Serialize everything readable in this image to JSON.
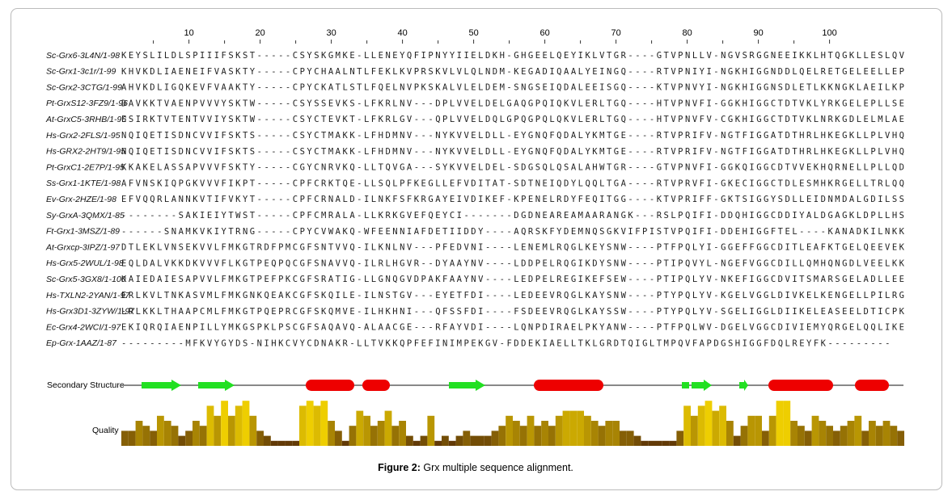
{
  "ruler": [
    10,
    20,
    30,
    40,
    50,
    60,
    70,
    80,
    90,
    100
  ],
  "alignment": [
    {
      "name": "Sc-Grx6-3L4N/1-98",
      "sequence": "KEYSLILDLSPIIIFSKST-----CSYSKGMKE-LLENEYQFIPNYYIIELDKH-GHGEELQEYIKLVTGR----GTVPNLLV-NGVSRGGNEEIKKLHTQGKLLESLQV"
    },
    {
      "name": "Sc-Grx1-3c1r/1-99",
      "sequence": "KHVKDLIAENEIFVASKTY-----CPYCHAALNTLFEKLKVPRSKVLVLQLNDM-KEGADIQAALYEINGQ----RTVPNIYI-NGKHIGGNDDLQELRETGELEELLEP"
    },
    {
      "name": "Sc-Grx2-3CTG/1-99",
      "sequence": "AHVKDLIGQKEVFVAAKTY-----CPYCKATLSTLFQELNVPKSKALVLELDEM-SNGSEIQDALEEISGQ----KTVPNVYI-NGKHIGGNSDLETLKKNGKLAEILKP"
    },
    {
      "name": "Pt-GrxS12-3FZ9/1-96",
      "sequence": "DAVKKTVAENPVVVYSKTW-----CSYSSEVKS-LFKRLNV---DPLVVELDELGAQGPQIQKVLERLTGQ----HTVPNVFI-GGKHIGGCTDTVKLYRKGELEPLLSE"
    },
    {
      "name": "At-GrxC5-3RHB/1-96",
      "sequence": "ESIRKTVTENTVVIYSKTW-----CSYCTEVKT-LFKRLGV---QPLVVELDQLGPQGPQLQKVLERLTGQ----HTVPNVFV-CGKHIGGCTDTVKLNRKGDLELMLAE"
    },
    {
      "name": "Hs-Grx2-2FLS/1-95",
      "sequence": "NQIQETISDNCVVIFSKTS-----CSYCTMAKK-LFHDMNV---NYKVVELDLL-EYGNQFQDALYKMTGE----RTVPRIFV-NGTFIGGATDTHRLHKEGKLLPLVHQ"
    },
    {
      "name": "Hs-GRX2-2HT9/1-95",
      "sequence": "NQIQETISDNCVVIFSKTS-----CSYCTMAKK-LFHDMNV---NYKVVELDLL-EYGNQFQDALYKMTGE----RTVPRIFV-NGTFIGGATDTHRLHKEGKLLPLVHQ"
    },
    {
      "name": "Pt-GrxC1-2E7P/1-95",
      "sequence": "KKAKELASSAPVVVFSKTY-----CGYCNRVKQ-LLTQVGA---SYKVVELDEL-SDGSQLQSALAHWTGR----GTVPNVFI-GGKQIGGCDTVVEKHQRNELLPLLQD"
    },
    {
      "name": "Ss-Grx1-1KTE/1-98",
      "sequence": "AFVNSKIQPGKVVVFIKPT-----CPFCRKTQE-LLSQLPFKEGLLEFVDITAT-SDTNEIQDYLQQLTGA----RTVPRVFI-GKECIGGCTDLESMHKRGELLTRLQQ"
    },
    {
      "name": "Ev-Grx-2HZE/1-98",
      "sequence": "EFVQQRLANNKVTIFVKYT-----CPFCRNALD-ILNKFSFKRGAYEIVDIKEF-KPENELRDYFEQITGG----KTVPRIFF-GKTSIGGYSDLLEIDNMDALGDILSS"
    },
    {
      "name": "Sy-GrxA-3QMX/1-85",
      "sequence": "--------SAKIEIYTWST-----CPFCMRALA-LLKRKGVEFQEYCI-------DGDNEAREAMAARANGK---RSLPQIFI-DDQHIGGCDDIYALDGAGKLDPLLHS"
    },
    {
      "name": "Ft-Grx1-3MSZ/1-89",
      "sequence": "------SNAMKVKIYTRNG-----CPYCVWAKQ-WFEENNIAFDETIIDDY----AQRSKFYDEMNQSGKVIFPISTVPQIFI-DDEHIGGFTEL----KANADKILNKK"
    },
    {
      "name": "At-Grxcp-3IPZ/1-97",
      "sequence": "DTLEKLVNSEKVVLFMKGTRDFPMCGFSNTVVQ-ILKNLNV---PFEDVNI----LENEMLRQGLKEYSNW----PTFPQLYI-GGEFFGGCDITLEAFKTGELQEEVEK"
    },
    {
      "name": "Hs-Grx5-2WUL/1-98",
      "sequence": "EQLDALVKKDKVVVFLKGTPEQPQCGFSNAVVQ-ILRLHGVR--DYAAYNV----LDDPELRQGIKDYSNW----PTIPQVYL-NGEFVGGCDILLQMHQNGDLVEELKK"
    },
    {
      "name": "Sc-Grx5-3GX8/1-100",
      "sequence": "KAIEDAIESAPVVLFMKGTPEFPKCGFSRATIG-LLGNQGVDPAKFAAYNV----LEDPELREGIKEFSEW----PTIPQLYV-NKEFIGGCDVITSMARSGELADLLEE"
    },
    {
      "name": "Hs-TXLN2-2YAN/1-97",
      "sequence": "ERLKVLTNKASVMLFMKGNKQEAKCGFSKQILE-ILNSTGV---EYETFDI----LEDEEVRQGLKAYSNW----PTYPQLYV-KGELVGGLDIVKELKENGELLPILRG"
    },
    {
      "name": "Hs-Grx3D1-3ZYW/1-97",
      "sequence": "LRLKKLTHAAPCMLFMKGTPQEPRCGFSKQMVE-ILHKHNI---QFSSFDI----FSDEEVRQGLKAYSSW----PTYPQLYV-SGELIGGLDIIKELEASEELDTICPK"
    },
    {
      "name": "Ec-Grx4-2WCI/1-97",
      "sequence": "EKIQRQIAENPILLYMKGSPKLPSCGFSAQAVQ-ALAACGE---RFAYVDI----LQNPDIRAELPKYANW----PTFPQLWV-DGELVGGCDIVIEMYQRGELQQLIKE"
    },
    {
      "name": "Ep-Grx-1AAZ/1-87",
      "sequence": "---------MFKVYGYDS-NIHKCVYCDNAKR-LLTVKKQPFEFINIMPEKGV-FDDEKIAELLTKLGRDTQIGLTMPQVFAPDGSHIGGFDQLREYFK---------"
    }
  ],
  "structure_label": "Secondary Structure",
  "quality_label": "Quality",
  "quality": [
    3,
    3,
    5,
    4,
    3,
    6,
    5,
    4,
    2,
    3,
    5,
    4,
    8,
    6,
    9,
    6,
    8,
    9,
    6,
    3,
    2,
    1,
    1,
    1,
    1,
    8,
    9,
    8,
    9,
    5,
    3,
    1,
    4,
    7,
    6,
    4,
    5,
    7,
    4,
    5,
    2,
    1,
    2,
    6,
    1,
    2,
    1,
    2,
    3,
    2,
    2,
    2,
    3,
    4,
    6,
    5,
    4,
    6,
    4,
    5,
    4,
    6,
    7,
    7,
    7,
    6,
    5,
    4,
    5,
    5,
    3,
    3,
    2,
    1,
    1,
    1,
    1,
    1,
    3,
    8,
    6,
    8,
    9,
    7,
    8,
    5,
    2,
    4,
    6,
    6,
    3,
    6,
    9,
    9,
    5,
    4,
    3,
    6,
    5,
    4,
    3,
    4,
    5,
    6,
    3,
    5,
    4,
    5,
    4,
    3
  ],
  "quality_max": 10,
  "caption": {
    "label": "Figure 2:",
    "text": "Grx multiple sequence alignment."
  }
}
